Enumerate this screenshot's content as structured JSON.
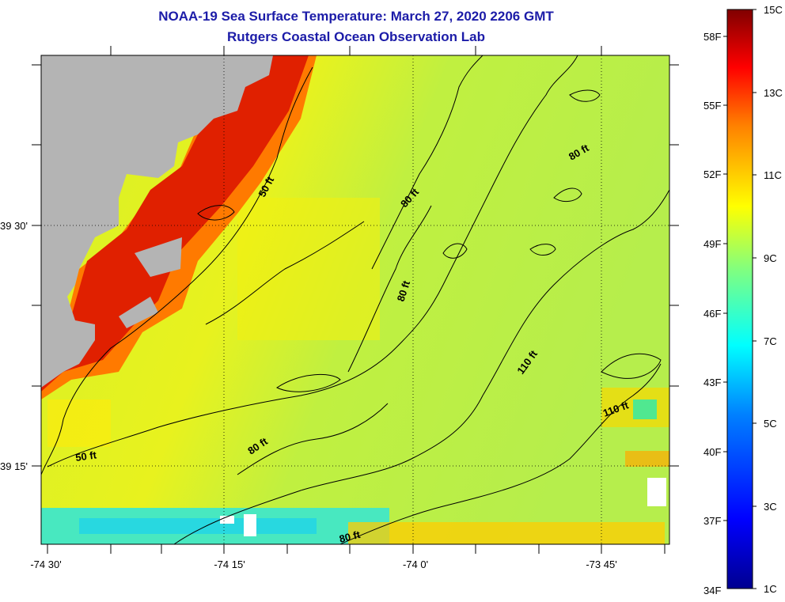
{
  "header": {
    "title": "NOAA-19 Sea Surface Temperature:  March 27, 2020 2206 GMT",
    "subtitle": "Rutgers Coastal Ocean Observation Lab"
  },
  "map": {
    "latitude_labels": [
      "39 30'",
      "39 15'"
    ],
    "longitude_labels": [
      "-74 30'",
      "-74 15'",
      "-74 0'",
      "-73 45'"
    ],
    "land_color": "#b4b4b4",
    "contour_labels": [
      "50 ft",
      "50 ft",
      "80 ft",
      "80 ft",
      "80 ft",
      "80 ft",
      "80 ft",
      "110 ft",
      "110 ft"
    ]
  },
  "colorbar": {
    "celsius_labels": [
      "15C",
      "13C",
      "11C",
      "9C",
      "7C",
      "5C",
      "3C",
      "1C"
    ],
    "fahrenheit_labels": [
      "58F",
      "55F",
      "52F",
      "49F",
      "46F",
      "43F",
      "40F",
      "37F",
      "34F"
    ],
    "colors": [
      "#000090",
      "#0000ff",
      "#0080ff",
      "#00ffff",
      "#80ff80",
      "#ffff00",
      "#ff8000",
      "#ff0000",
      "#800000"
    ]
  }
}
